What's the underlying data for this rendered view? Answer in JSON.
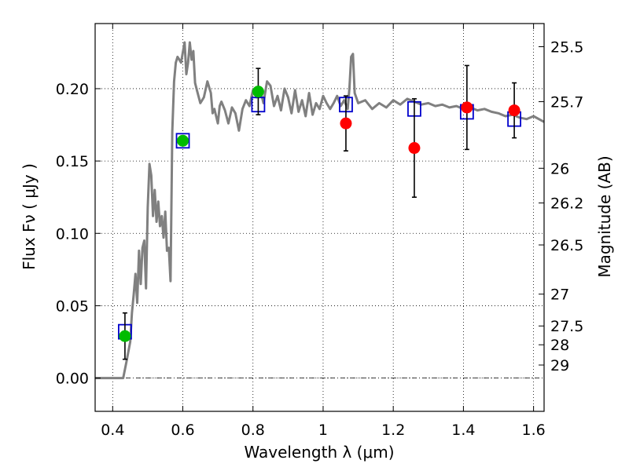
{
  "chart_data": {
    "type": "scatter",
    "xlabel": "Wavelength  λ (μm)",
    "ylabel": "Flux  Fν  ( μJy )",
    "ylabel_right": "Magnitude (AB)",
    "xlim": [
      0.35,
      1.63
    ],
    "ylim": [
      -0.023,
      0.245
    ],
    "x_ticks": [
      0.4,
      0.6,
      0.8,
      1.0,
      1.2,
      1.4,
      1.6
    ],
    "x_tick_labels": [
      "0.4",
      "0.6",
      "0.8",
      "1",
      "1.2",
      "1.4",
      "1.6"
    ],
    "y_ticks": [
      0.0,
      0.05,
      0.1,
      0.15,
      0.2
    ],
    "y_tick_labels": [
      "0.00",
      "0.05",
      "0.10",
      "0.15",
      "0.20"
    ],
    "right_ticks": [
      {
        "label": "25.5",
        "flux": 0.229
      },
      {
        "label": "25.7",
        "flux": 0.191
      },
      {
        "label": "26",
        "flux": 0.145
      },
      {
        "label": "26.2",
        "flux": 0.121
      },
      {
        "label": "26.5",
        "flux": 0.092
      },
      {
        "label": "27",
        "flux": 0.058
      },
      {
        "label": "27.5",
        "flux": 0.036
      },
      {
        "label": "28",
        "flux": 0.023
      },
      {
        "label": "29",
        "flux": 0.009
      }
    ],
    "grid": true,
    "colors": {
      "model": "#808080",
      "green_points": "#00bb00",
      "red_points": "#ff0000",
      "boxes": "#0000cc",
      "errorbars": "#000000"
    },
    "series": [
      {
        "kind": "line",
        "points": [
          [
            0.35,
            0.0
          ],
          [
            0.41,
            0.0
          ],
          [
            0.43,
            0.0
          ],
          [
            0.44,
            0.012
          ],
          [
            0.45,
            0.025
          ],
          [
            0.455,
            0.045
          ],
          [
            0.46,
            0.058
          ],
          [
            0.465,
            0.072
          ],
          [
            0.47,
            0.052
          ],
          [
            0.475,
            0.088
          ],
          [
            0.48,
            0.065
          ],
          [
            0.485,
            0.09
          ],
          [
            0.49,
            0.095
          ],
          [
            0.495,
            0.062
          ],
          [
            0.5,
            0.118
          ],
          [
            0.505,
            0.148
          ],
          [
            0.51,
            0.14
          ],
          [
            0.515,
            0.112
          ],
          [
            0.52,
            0.13
          ],
          [
            0.525,
            0.108
          ],
          [
            0.53,
            0.122
          ],
          [
            0.535,
            0.105
          ],
          [
            0.54,
            0.112
          ],
          [
            0.545,
            0.097
          ],
          [
            0.55,
            0.115
          ],
          [
            0.555,
            0.088
          ],
          [
            0.56,
            0.09
          ],
          [
            0.565,
            0.067
          ],
          [
            0.57,
            0.17
          ],
          [
            0.575,
            0.205
          ],
          [
            0.58,
            0.218
          ],
          [
            0.585,
            0.222
          ],
          [
            0.59,
            0.22
          ],
          [
            0.595,
            0.218
          ],
          [
            0.6,
            0.225
          ],
          [
            0.605,
            0.232
          ],
          [
            0.61,
            0.21
          ],
          [
            0.615,
            0.218
          ],
          [
            0.62,
            0.232
          ],
          [
            0.625,
            0.22
          ],
          [
            0.63,
            0.226
          ],
          [
            0.635,
            0.204
          ],
          [
            0.64,
            0.199
          ],
          [
            0.65,
            0.19
          ],
          [
            0.66,
            0.194
          ],
          [
            0.67,
            0.205
          ],
          [
            0.68,
            0.197
          ],
          [
            0.685,
            0.183
          ],
          [
            0.69,
            0.186
          ],
          [
            0.7,
            0.176
          ],
          [
            0.705,
            0.188
          ],
          [
            0.71,
            0.191
          ],
          [
            0.72,
            0.185
          ],
          [
            0.73,
            0.176
          ],
          [
            0.74,
            0.187
          ],
          [
            0.75,
            0.183
          ],
          [
            0.76,
            0.171
          ],
          [
            0.77,
            0.186
          ],
          [
            0.78,
            0.192
          ],
          [
            0.79,
            0.188
          ],
          [
            0.8,
            0.199
          ],
          [
            0.81,
            0.194
          ],
          [
            0.82,
            0.2
          ],
          [
            0.83,
            0.19
          ],
          [
            0.84,
            0.205
          ],
          [
            0.85,
            0.202
          ],
          [
            0.86,
            0.188
          ],
          [
            0.87,
            0.195
          ],
          [
            0.88,
            0.185
          ],
          [
            0.89,
            0.2
          ],
          [
            0.9,
            0.194
          ],
          [
            0.91,
            0.183
          ],
          [
            0.92,
            0.199
          ],
          [
            0.93,
            0.184
          ],
          [
            0.94,
            0.192
          ],
          [
            0.95,
            0.181
          ],
          [
            0.96,
            0.197
          ],
          [
            0.97,
            0.182
          ],
          [
            0.98,
            0.19
          ],
          [
            0.99,
            0.186
          ],
          [
            1.0,
            0.195
          ],
          [
            1.01,
            0.19
          ],
          [
            1.02,
            0.186
          ],
          [
            1.03,
            0.19
          ],
          [
            1.04,
            0.195
          ],
          [
            1.05,
            0.188
          ],
          [
            1.06,
            0.192
          ],
          [
            1.07,
            0.186
          ],
          [
            1.075,
            0.2
          ],
          [
            1.08,
            0.222
          ],
          [
            1.085,
            0.224
          ],
          [
            1.09,
            0.197
          ],
          [
            1.1,
            0.19
          ],
          [
            1.12,
            0.192
          ],
          [
            1.14,
            0.186
          ],
          [
            1.16,
            0.19
          ],
          [
            1.18,
            0.187
          ],
          [
            1.2,
            0.192
          ],
          [
            1.22,
            0.189
          ],
          [
            1.24,
            0.193
          ],
          [
            1.26,
            0.191
          ],
          [
            1.28,
            0.189
          ],
          [
            1.3,
            0.19
          ],
          [
            1.32,
            0.188
          ],
          [
            1.34,
            0.189
          ],
          [
            1.36,
            0.187
          ],
          [
            1.38,
            0.188
          ],
          [
            1.4,
            0.186
          ],
          [
            1.42,
            0.187
          ],
          [
            1.44,
            0.185
          ],
          [
            1.46,
            0.186
          ],
          [
            1.48,
            0.184
          ],
          [
            1.5,
            0.183
          ],
          [
            1.52,
            0.181
          ],
          [
            1.54,
            0.182
          ],
          [
            1.56,
            0.18
          ],
          [
            1.58,
            0.179
          ],
          [
            1.6,
            0.181
          ],
          [
            1.63,
            0.177
          ]
        ]
      },
      {
        "kind": "boxes",
        "points": [
          [
            0.435,
            0.032
          ],
          [
            0.6,
            0.164
          ],
          [
            0.815,
            0.189
          ],
          [
            1.065,
            0.189
          ],
          [
            1.26,
            0.186
          ],
          [
            1.41,
            0.184
          ],
          [
            1.545,
            0.179
          ]
        ]
      },
      {
        "kind": "points",
        "color": "green",
        "points": [
          {
            "x": 0.435,
            "y": 0.029,
            "err_low": 0.016,
            "err_high": 0.016
          },
          {
            "x": 0.6,
            "y": 0.164,
            "err_low": 0.0,
            "err_high": 0.0
          },
          {
            "x": 0.815,
            "y": 0.198,
            "err_low": 0.016,
            "err_high": 0.016
          }
        ]
      },
      {
        "kind": "points",
        "color": "red",
        "points": [
          {
            "x": 1.065,
            "y": 0.176,
            "err_low": 0.019,
            "err_high": 0.019
          },
          {
            "x": 1.26,
            "y": 0.159,
            "err_low": 0.034,
            "err_high": 0.034
          },
          {
            "x": 1.41,
            "y": 0.187,
            "err_low": 0.029,
            "err_high": 0.029
          },
          {
            "x": 1.545,
            "y": 0.185,
            "err_low": 0.019,
            "err_high": 0.019
          }
        ]
      }
    ]
  }
}
